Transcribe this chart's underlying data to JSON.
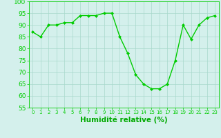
{
  "x": [
    0,
    1,
    2,
    3,
    4,
    5,
    6,
    7,
    8,
    9,
    10,
    11,
    12,
    13,
    14,
    15,
    16,
    17,
    18,
    19,
    20,
    21,
    22,
    23
  ],
  "y": [
    87,
    85,
    90,
    90,
    91,
    91,
    94,
    94,
    94,
    95,
    95,
    85,
    78,
    69,
    65,
    63,
    63,
    65,
    75,
    90,
    84,
    90,
    93,
    94
  ],
  "line_color": "#00cc00",
  "marker_color": "#00cc00",
  "bg_color": "#d4f0ec",
  "grid_color": "#a8d8cc",
  "xlabel": "Humidité relative (%)",
  "xlabel_color": "#00aa00",
  "ylim": [
    55,
    100
  ],
  "yticks": [
    55,
    60,
    65,
    70,
    75,
    80,
    85,
    90,
    95,
    100
  ],
  "xlim": [
    -0.5,
    23.5
  ],
  "axis_fontsize": 6.5,
  "label_fontsize": 7.5
}
